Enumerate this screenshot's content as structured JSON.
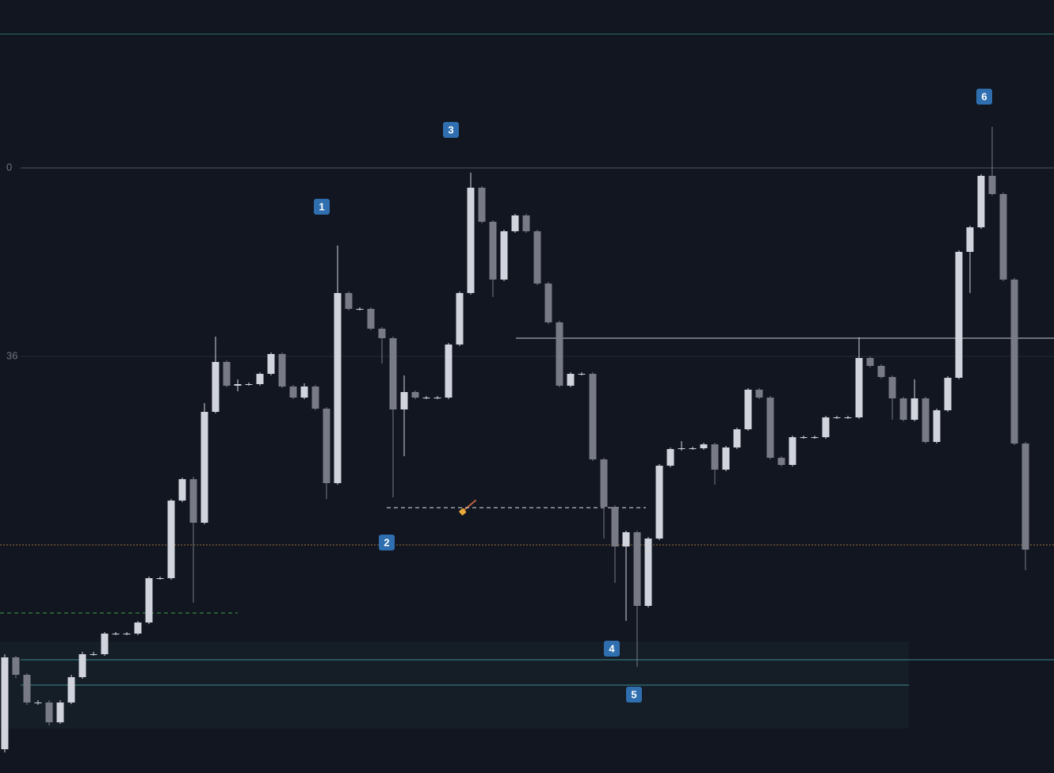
{
  "chart_data": {
    "type": "candlestick",
    "ylim": [
      0,
      976
    ],
    "up_color": "#d1d4dc",
    "down_color": "#787b86",
    "candles": [
      [
        30,
        150,
        26,
        146
      ],
      [
        146,
        148,
        120,
        124
      ],
      [
        124,
        126,
        86,
        89
      ],
      [
        89,
        92,
        86,
        89
      ],
      [
        89,
        92,
        60,
        64
      ],
      [
        64,
        92,
        62,
        89
      ],
      [
        89,
        124,
        87,
        121
      ],
      [
        121,
        153,
        119,
        150
      ],
      [
        150,
        153,
        148,
        150
      ],
      [
        150,
        178,
        148,
        176
      ],
      [
        176,
        178,
        174,
        176
      ],
      [
        176,
        178,
        174,
        176
      ],
      [
        176,
        192,
        174,
        190
      ],
      [
        190,
        248,
        188,
        246
      ],
      [
        246,
        248,
        244,
        246
      ],
      [
        246,
        346,
        244,
        344
      ],
      [
        344,
        373,
        342,
        371
      ],
      [
        371,
        374,
        215,
        316
      ],
      [
        316,
        467,
        314,
        456
      ],
      [
        456,
        551,
        454,
        519
      ],
      [
        519,
        521,
        487,
        489
      ],
      [
        489,
        497,
        482,
        491
      ],
      [
        491,
        493,
        489,
        491
      ],
      [
        491,
        506,
        489,
        504
      ],
      [
        504,
        531,
        502,
        529
      ],
      [
        529,
        531,
        486,
        488
      ],
      [
        488,
        490,
        472,
        474
      ],
      [
        474,
        492,
        472,
        488
      ],
      [
        488,
        490,
        458,
        460
      ],
      [
        460,
        462,
        346,
        366
      ],
      [
        366,
        666,
        364,
        606
      ],
      [
        606,
        608,
        584,
        586
      ],
      [
        586,
        588,
        584,
        586
      ],
      [
        586,
        588,
        559,
        561
      ],
      [
        561,
        563,
        517,
        549
      ],
      [
        549,
        551,
        348,
        459
      ],
      [
        459,
        502,
        400,
        481
      ],
      [
        481,
        483,
        472,
        474
      ],
      [
        474,
        476,
        472,
        474
      ],
      [
        474,
        476,
        472,
        474
      ],
      [
        474,
        543,
        472,
        541
      ],
      [
        541,
        608,
        539,
        606
      ],
      [
        606,
        758,
        604,
        739
      ],
      [
        739,
        741,
        694,
        696
      ],
      [
        696,
        698,
        601,
        623
      ],
      [
        623,
        686,
        621,
        684
      ],
      [
        684,
        706,
        682,
        704
      ],
      [
        704,
        706,
        682,
        684
      ],
      [
        684,
        686,
        616,
        618
      ],
      [
        618,
        620,
        567,
        569
      ],
      [
        569,
        571,
        487,
        489
      ],
      [
        489,
        506,
        487,
        504
      ],
      [
        504,
        506,
        502,
        504
      ],
      [
        504,
        506,
        394,
        396
      ],
      [
        396,
        398,
        296,
        336
      ],
      [
        336,
        338,
        240,
        286
      ],
      [
        286,
        306,
        192,
        304
      ],
      [
        304,
        306,
        134,
        211
      ],
      [
        211,
        298,
        209,
        296
      ],
      [
        296,
        390,
        294,
        388
      ],
      [
        388,
        411,
        386,
        409
      ],
      [
        409,
        419,
        407,
        410
      ],
      [
        410,
        412,
        408,
        410
      ],
      [
        410,
        417,
        408,
        415
      ],
      [
        415,
        417,
        364,
        383
      ],
      [
        383,
        413,
        381,
        411
      ],
      [
        411,
        436,
        409,
        434
      ],
      [
        434,
        486,
        432,
        484
      ],
      [
        484,
        486,
        472,
        474
      ],
      [
        474,
        476,
        396,
        398
      ],
      [
        398,
        400,
        387,
        389
      ],
      [
        389,
        426,
        387,
        424
      ],
      [
        424,
        426,
        422,
        424
      ],
      [
        424,
        426,
        422,
        424
      ],
      [
        424,
        451,
        422,
        449
      ],
      [
        449,
        451,
        447,
        449
      ],
      [
        449,
        451,
        447,
        449
      ],
      [
        449,
        550,
        447,
        524
      ],
      [
        524,
        526,
        512,
        514
      ],
      [
        514,
        516,
        498,
        500
      ],
      [
        500,
        502,
        446,
        473
      ],
      [
        473,
        475,
        444,
        446
      ],
      [
        446,
        497,
        444,
        473
      ],
      [
        473,
        475,
        416,
        418
      ],
      [
        418,
        460,
        416,
        458
      ],
      [
        458,
        501,
        456,
        499
      ],
      [
        499,
        660,
        497,
        658
      ],
      [
        658,
        691,
        606,
        689
      ],
      [
        689,
        756,
        687,
        754
      ],
      [
        754,
        816,
        729,
        731
      ],
      [
        731,
        733,
        621,
        623
      ],
      [
        623,
        625,
        414,
        416
      ],
      [
        416,
        418,
        256,
        282
      ]
    ],
    "hlines": [
      {
        "value": 933,
        "color": "#2c6e6c",
        "style": "solid"
      },
      {
        "value": 764,
        "color": "#50545e",
        "style": "solid",
        "label": "0"
      },
      {
        "value": 526,
        "color": "#232b38",
        "style": "solid",
        "label": "36"
      },
      {
        "value": 549,
        "color": "#c8cbd2",
        "style": "solid"
      },
      {
        "value": 288,
        "color": "#a0703a",
        "style": "dotted"
      },
      {
        "value": 202,
        "color": "#3aa04a",
        "style": "dashed"
      },
      {
        "value": 335,
        "color": "#e0e0e0",
        "style": "dashed"
      },
      {
        "value": 143,
        "color": "#3a8a90",
        "style": "solid"
      },
      {
        "value": 111,
        "color": "#3a8a90",
        "style": "solid"
      }
    ],
    "markers": [
      "1",
      "2",
      "3",
      "4",
      "5",
      "6"
    ]
  }
}
